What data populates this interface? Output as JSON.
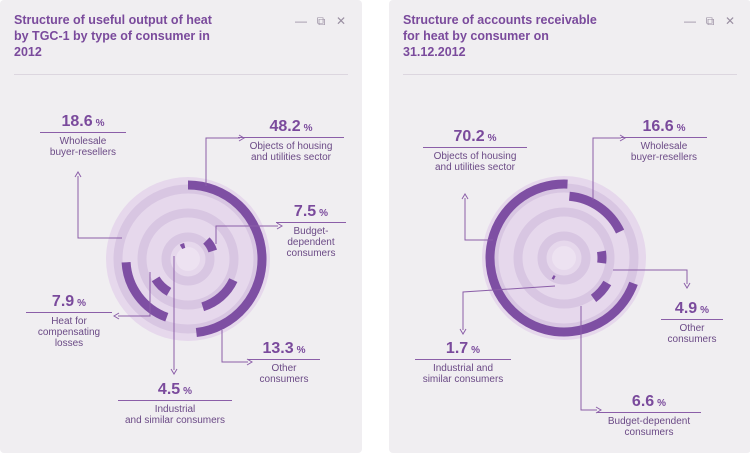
{
  "colors": {
    "accent": "#7e4fa3",
    "ring_light": "#e6d8ec",
    "ring_mid": "#d6c2e0",
    "panel": "#f0eef1"
  },
  "window_controls": {
    "minimize_icon": "minimize-icon",
    "restore_icon": "restore-icon",
    "close_icon": "close-icon"
  },
  "panels": [
    {
      "title": "Structure of useful output of heat by TGC-1 by type of consumer in 2012",
      "labels": [
        {
          "value": "18.6",
          "unit": "%",
          "desc": "Wholesale\nbuyer-resellers"
        },
        {
          "value": "48.2",
          "unit": "%",
          "desc": "Objects of housing\nand utilities sector"
        },
        {
          "value": "7.5",
          "unit": "%",
          "desc": "Budget-\ndependent\nconsumers"
        },
        {
          "value": "7.9",
          "unit": "%",
          "desc": "Heat for\ncompensating\nlosses"
        },
        {
          "value": "13.3",
          "unit": "%",
          "desc": "Other\nconsumers"
        },
        {
          "value": "4.5",
          "unit": "%",
          "desc": "Industrial\nand similar consumers"
        }
      ]
    },
    {
      "title": "Structure of accounts receivable for heat by consumer on 31.12.2012",
      "labels": [
        {
          "value": "70.2",
          "unit": "%",
          "desc": "Objects of housing\nand utilities sector"
        },
        {
          "value": "16.6",
          "unit": "%",
          "desc": "Wholesale\nbuyer-resellers"
        },
        {
          "value": "4.9",
          "unit": "%",
          "desc": "Other\nconsumers"
        },
        {
          "value": "1.7",
          "unit": "%",
          "desc": "Industrial and\nsimilar consumers"
        },
        {
          "value": "6.6",
          "unit": "%",
          "desc": "Budget-dependent\nconsumers"
        }
      ]
    }
  ],
  "chart_data": [
    {
      "type": "pie",
      "title": "Structure of useful output of heat by TGC-1 by type of consumer in 2012",
      "categories": [
        "Objects of housing and utilities sector",
        "Wholesale buyer-resellers",
        "Other consumers",
        "Heat for compensating losses",
        "Budget-dependent consumers",
        "Industrial and similar consumers"
      ],
      "values": [
        48.2,
        18.6,
        13.3,
        7.9,
        7.5,
        4.5
      ],
      "unit": "%"
    },
    {
      "type": "pie",
      "title": "Structure of accounts receivable for heat by consumer on 31.12.2012",
      "categories": [
        "Objects of housing and utilities sector",
        "Wholesale buyer-resellers",
        "Budget-dependent consumers",
        "Other consumers",
        "Industrial and similar consumers"
      ],
      "values": [
        70.2,
        16.6,
        6.6,
        4.9,
        1.7
      ],
      "unit": "%"
    }
  ]
}
